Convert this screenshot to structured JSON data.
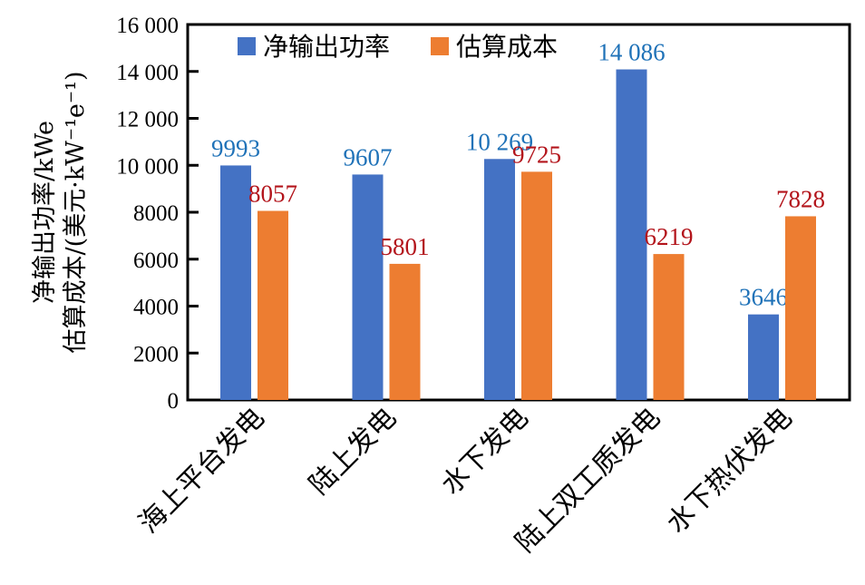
{
  "chart_data": {
    "type": "bar",
    "title": "",
    "xlabel": "",
    "ylabel_lines": [
      "净输出功率/kWe",
      "估算成本/(美元·kW⁻¹e⁻¹)"
    ],
    "categories": [
      "海上平台发电",
      "陆上发电",
      "水下发电",
      "陆上双工质发电",
      "水下热伏发电"
    ],
    "series": [
      {
        "name": "净输出功率",
        "values": [
          9993,
          9607,
          10269,
          14086,
          3646
        ],
        "labels": [
          "9993",
          "9607",
          "10 269",
          "14 086",
          "3646"
        ],
        "color": "#4472C4",
        "label_color": "#1F72B8"
      },
      {
        "name": "估算成本",
        "values": [
          8057,
          5801,
          9725,
          6219,
          7828
        ],
        "labels": [
          "8057",
          "5801",
          "9725",
          "6219",
          "7828"
        ],
        "color": "#ED7D31",
        "label_color": "#B3141B"
      }
    ],
    "ylim": [
      0,
      16000
    ],
    "yticks": [
      0,
      2000,
      4000,
      6000,
      8000,
      10000,
      12000,
      14000,
      16000
    ],
    "ytick_labels": [
      "0",
      "2000",
      "4000",
      "6000",
      "8000",
      "10 000",
      "12 000",
      "14 000",
      "16 000"
    ],
    "legend": "top-left",
    "grid": false
  }
}
